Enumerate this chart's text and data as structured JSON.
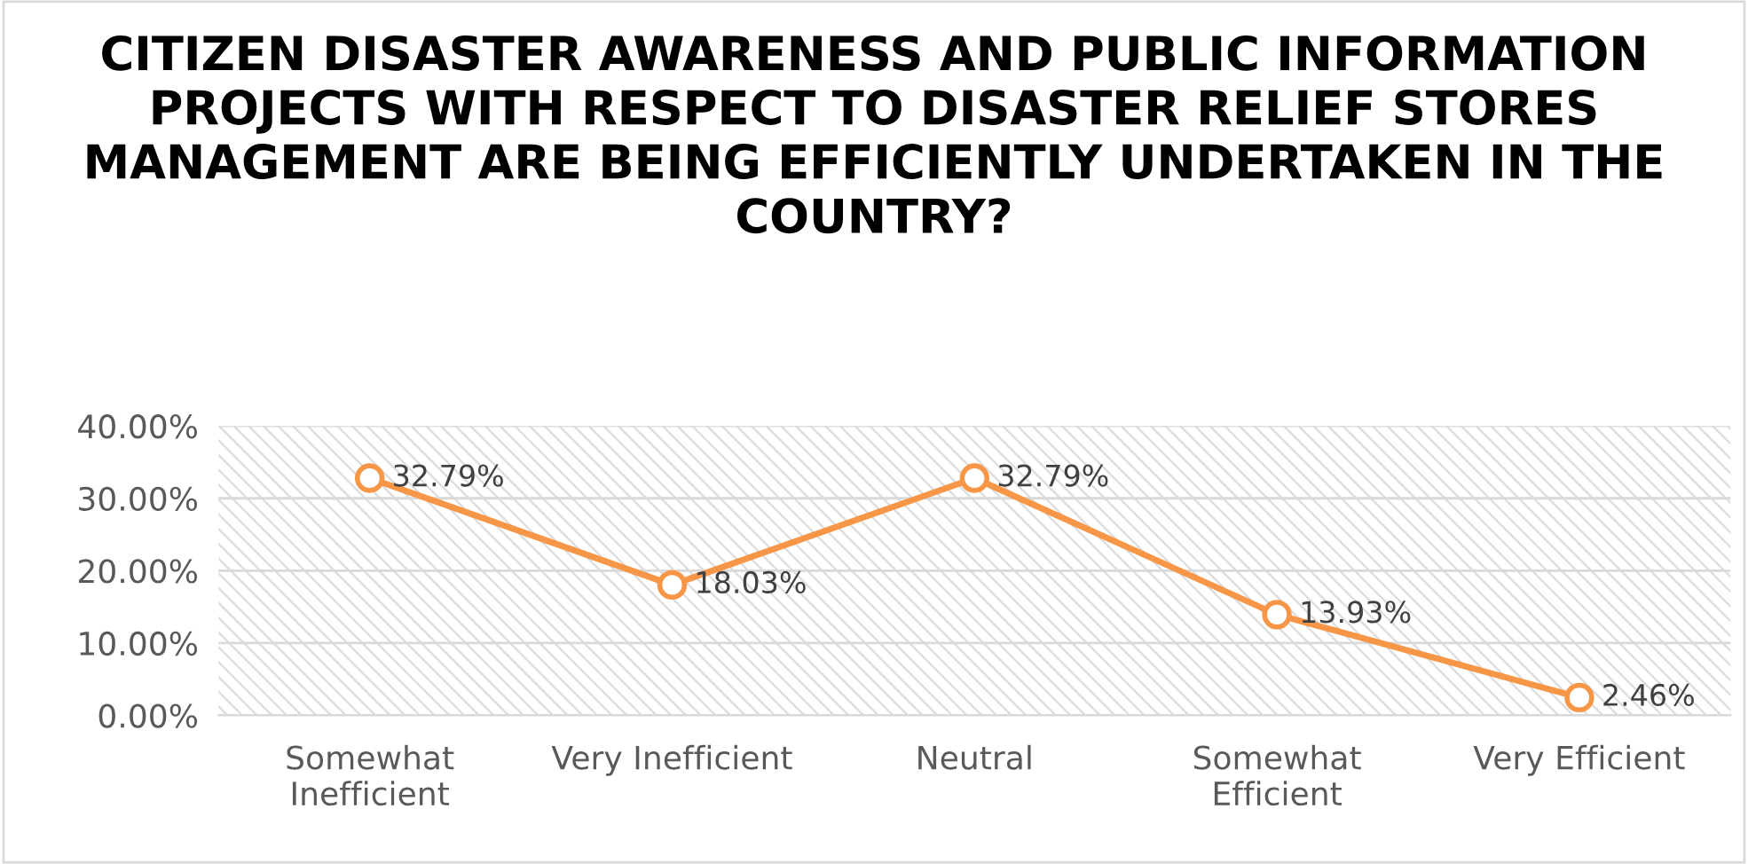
{
  "chart_data": {
    "type": "line",
    "title": "CITIZEN DISASTER AWARENESS AND PUBLIC INFORMATION PROJECTS WITH RESPECT TO DISASTER RELIEF STORES MANAGEMENT ARE BEING EFFICIENTLY UNDERTAKEN IN THE COUNTRY?",
    "categories": [
      "Somewhat Inefficient",
      "Very Inefficient",
      "Neutral",
      "Somewhat Efficient",
      "Very Efficient"
    ],
    "series": [
      {
        "color": "#f79646",
        "values": [
          32.79,
          18.03,
          32.79,
          13.93,
          2.46
        ],
        "value_labels": [
          "32.79%",
          "18.03%",
          "32.79%",
          "13.93%",
          "2.46%"
        ]
      }
    ],
    "ylim": [
      0,
      40
    ],
    "yticks": [
      {
        "value": 0,
        "label": "0.00%"
      },
      {
        "value": 10,
        "label": "10.00%"
      },
      {
        "value": 20,
        "label": "20.00%"
      },
      {
        "value": 30,
        "label": "30.00%"
      },
      {
        "value": 40,
        "label": "40.00%"
      }
    ],
    "grid": "y",
    "marker": "circle",
    "line_style": "solid",
    "legend": false
  }
}
